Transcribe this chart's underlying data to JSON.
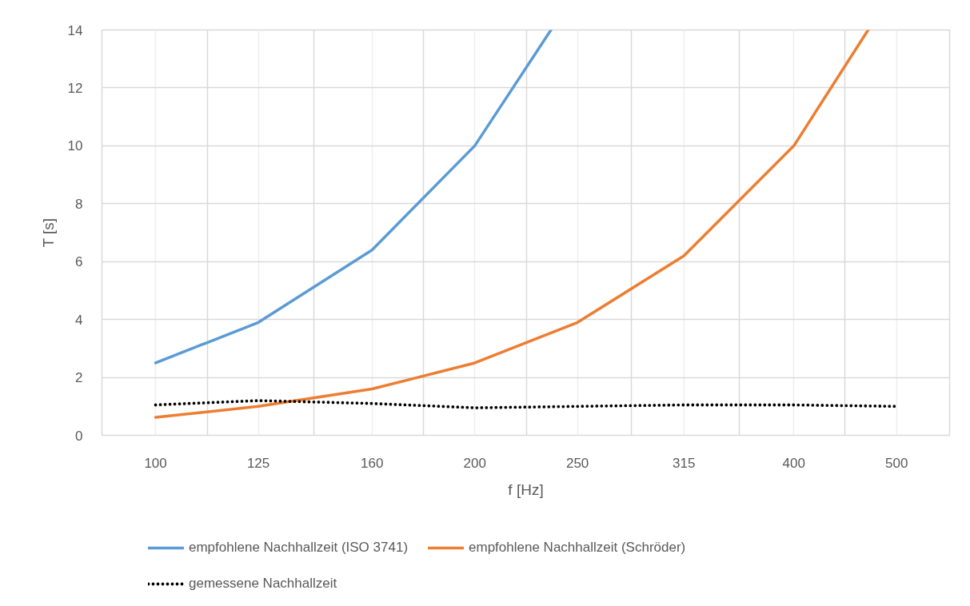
{
  "chart_data": {
    "type": "line",
    "xlabel": "f [Hz]",
    "ylabel": "T [s]",
    "log": "x",
    "xlim": [
      89,
      561
    ],
    "xticks": [
      100,
      {
        "value": 112,
        "label": null
      },
      125,
      {
        "value": 141,
        "label": null
      },
      160,
      {
        "value": 179,
        "label": null
      },
      200,
      {
        "value": 224,
        "label": null
      },
      250,
      {
        "value": 281,
        "label": null
      },
      315,
      {
        "value": 355,
        "label": null
      },
      400,
      {
        "value": 447,
        "label": null
      },
      500
    ],
    "ylim": [
      0,
      14
    ],
    "yticks": [
      0,
      2,
      4,
      6,
      8,
      10,
      12,
      14
    ],
    "grid": true,
    "legend": "bottom",
    "series": [
      {
        "name": "empfohlene Nachhallzeit (ISO 3741)",
        "color": "#5b9bd5",
        "line_style": "solid",
        "x": [
          100,
          125,
          160,
          200,
          236
        ],
        "values": [
          2.5,
          3.9,
          6.4,
          10,
          14
        ]
      },
      {
        "name": "empfohlene Nachhallzeit (Schröder)",
        "color": "#ed7d31",
        "line_style": "solid",
        "x": [
          100,
          125,
          160,
          200,
          250,
          315,
          400,
          470
        ],
        "values": [
          0.62,
          1.0,
          1.6,
          2.5,
          3.9,
          6.2,
          10,
          14
        ]
      },
      {
        "name": "gemessene Nachhallzeit",
        "color": "#000000",
        "line_style": "dotted",
        "x": [
          100,
          125,
          160,
          200,
          250,
          315,
          400,
          500
        ],
        "values": [
          1.05,
          1.2,
          1.1,
          0.95,
          1.0,
          1.05,
          1.05,
          1.0
        ]
      }
    ]
  }
}
